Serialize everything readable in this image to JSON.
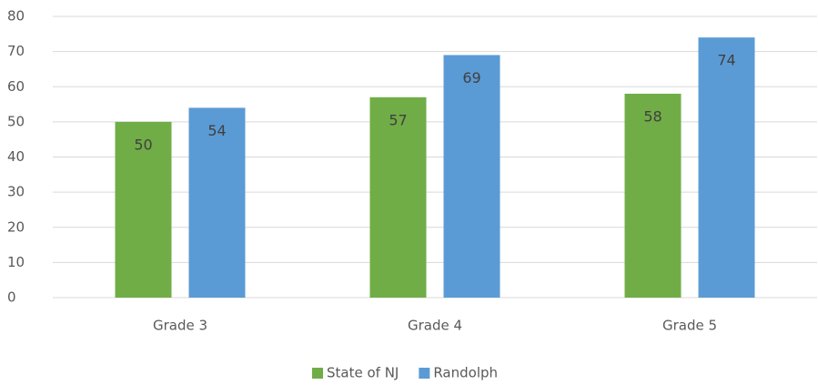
{
  "chart_data": {
    "type": "bar",
    "categories": [
      "Grade 3",
      "Grade 4",
      "Grade 5"
    ],
    "series": [
      {
        "name": "State of NJ",
        "color": "#70ad47",
        "values": [
          50,
          57,
          58
        ]
      },
      {
        "name": "Randolph",
        "color": "#5b9bd5",
        "values": [
          54,
          69,
          74
        ]
      }
    ],
    "ylim": [
      0,
      80
    ],
    "yticks": [
      0,
      10,
      20,
      30,
      40,
      50,
      60,
      70,
      80
    ],
    "grid": true,
    "legend": "bottom"
  }
}
